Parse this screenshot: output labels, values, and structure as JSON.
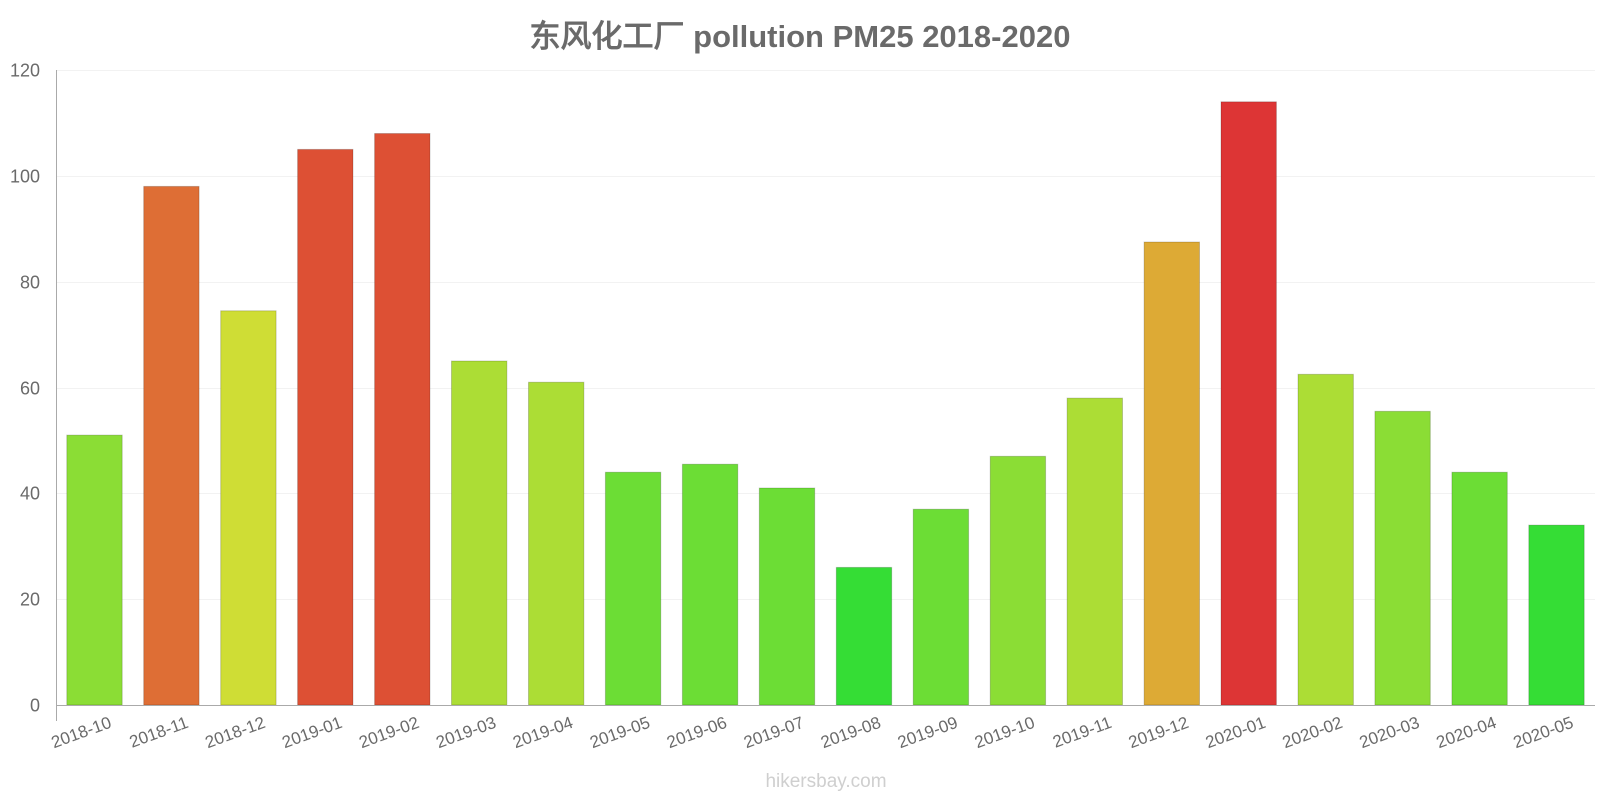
{
  "chart_data": {
    "type": "bar",
    "title": "东风化工厂 pollution PM25 2018-2020",
    "xlabel": "",
    "ylabel": "",
    "ylim": [
      0,
      120
    ],
    "yticks": [
      0,
      20,
      40,
      60,
      80,
      100,
      120
    ],
    "grid": true,
    "categories": [
      "2018-10",
      "2018-11",
      "2018-12",
      "2019-01",
      "2019-02",
      "2019-03",
      "2019-04",
      "2019-05",
      "2019-06",
      "2019-07",
      "2019-08",
      "2019-09",
      "2019-10",
      "2019-11",
      "2019-12",
      "2020-01",
      "2020-02",
      "2020-03",
      "2020-04",
      "2020-05"
    ],
    "values": [
      51,
      98,
      74.5,
      105,
      108,
      65,
      61,
      44,
      45.5,
      41,
      26,
      37,
      47,
      58,
      87.5,
      114,
      62.5,
      55.5,
      44,
      34
    ],
    "colors": [
      "#8bdd35",
      "#de6e35",
      "#cfdd35",
      "#dd5034",
      "#dd5034",
      "#acdd35",
      "#acdd35",
      "#6cdd35",
      "#6cdd35",
      "#6cdd35",
      "#35dd35",
      "#6cdd35",
      "#8bdd35",
      "#acdd35",
      "#ddaa35",
      "#dd3535",
      "#acdd35",
      "#8bdd35",
      "#6cdd35",
      "#35dd35"
    ]
  },
  "footer": {
    "source": "hikersbay.com"
  }
}
